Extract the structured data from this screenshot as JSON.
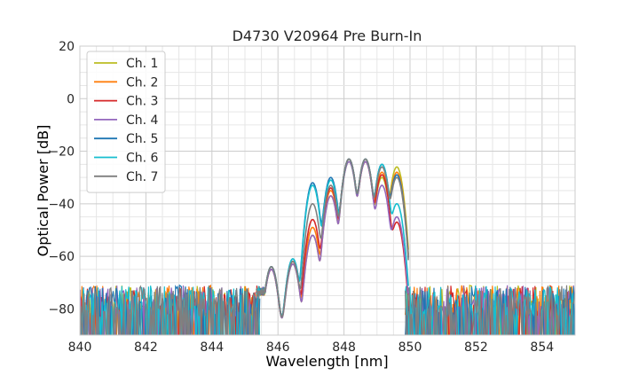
{
  "chart_data": {
    "type": "line",
    "title": "D4730 V20964 Pre Burn-In",
    "xlabel": "Wavelength [nm]",
    "ylabel": "Optical Power [dB]",
    "xlim": [
      840,
      855
    ],
    "ylim": [
      -90,
      20
    ],
    "xticks": [
      840,
      842,
      844,
      846,
      848,
      850,
      852,
      854
    ],
    "yticks": [
      20,
      0,
      -20,
      -40,
      -60,
      -80
    ],
    "grid": true,
    "legend_position": "top-left",
    "noise_floor_db": -80,
    "peaks_nm": [
      845.8,
      846.45,
      847.05,
      847.6,
      848.15,
      848.65,
      849.15,
      849.6
    ],
    "series": [
      {
        "name": "Ch. 1",
        "color": "#bcbd22",
        "peak_values_db": [
          -65,
          -63,
          -52,
          -37,
          -24,
          -24,
          -30,
          -26
        ]
      },
      {
        "name": "Ch. 2",
        "color": "#ff7f0e",
        "peak_values_db": [
          -64,
          -62,
          -49,
          -35,
          -23,
          -23,
          -28,
          -28
        ]
      },
      {
        "name": "Ch. 3",
        "color": "#d62728",
        "peak_values_db": [
          -65,
          -62,
          -46,
          -34,
          -23,
          -24,
          -29,
          -47
        ]
      },
      {
        "name": "Ch. 4",
        "color": "#9467bd",
        "peak_values_db": [
          -65,
          -63,
          -52,
          -37,
          -24,
          -24,
          -33,
          -45
        ]
      },
      {
        "name": "Ch. 5",
        "color": "#1f77b4",
        "peak_values_db": [
          -64,
          -61,
          -32,
          -30,
          -23,
          -23,
          -25,
          -29
        ]
      },
      {
        "name": "Ch. 6",
        "color": "#17becf",
        "peak_values_db": [
          -64,
          -61,
          -33,
          -31,
          -23,
          -23,
          -25,
          -40
        ]
      },
      {
        "name": "Ch. 7",
        "color": "#7f7f7f",
        "peak_values_db": [
          -64,
          -62,
          -40,
          -33,
          -23,
          -23,
          -26,
          -30
        ]
      }
    ]
  }
}
